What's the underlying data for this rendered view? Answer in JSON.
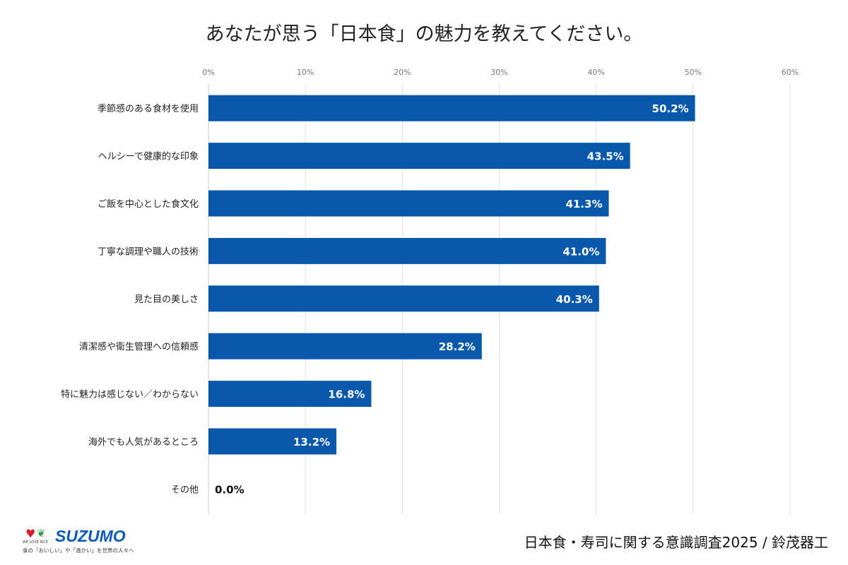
{
  "chart_data": {
    "type": "bar",
    "orientation": "horizontal",
    "title": "あなたが思う「日本食」の魅力を教えてください。",
    "categories": [
      "季節感のある食材を使用",
      "ヘルシーで健康的な印象",
      "ご飯を中心とした食文化",
      "丁寧な調理や職人の技術",
      "見た目の美しさ",
      "清潔感や衛生管理への信頼感",
      "特に魅力は感じない／わからない",
      "海外でも人気があるところ",
      "その他"
    ],
    "values": [
      50.2,
      43.5,
      41.3,
      41.0,
      40.3,
      28.2,
      16.8,
      13.2,
      0.0
    ],
    "data_labels": [
      "50.2%",
      "43.5%",
      "41.3%",
      "41.0%",
      "40.3%",
      "28.2%",
      "16.8%",
      "13.2%",
      "0.0%"
    ],
    "xlim": [
      0,
      60
    ],
    "xticks": [
      "0%",
      "10%",
      "20%",
      "30%",
      "40%",
      "50%",
      "60%"
    ],
    "axis_position": "top",
    "grid": true,
    "bar_color": "#0a58ab"
  },
  "footer": {
    "source": "日本食・寿司に関する意識調査2025 / 鈴茂器工",
    "logo": {
      "brand": "SUZUMO",
      "sub": "WE LOVE RICE",
      "tagline": "食の「おいしい」や「温かい」を世界の人々へ"
    }
  }
}
